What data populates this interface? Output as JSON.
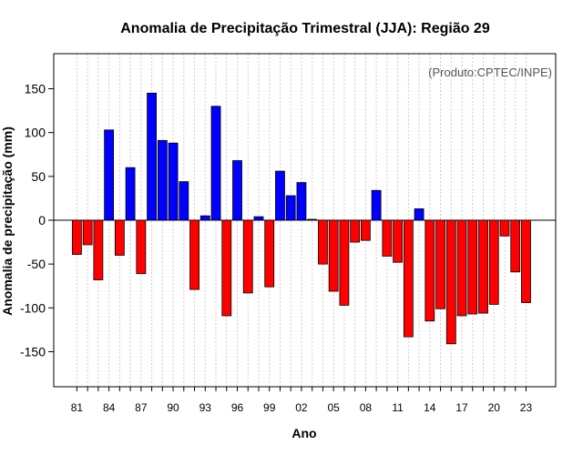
{
  "chart_data": {
    "type": "bar",
    "title": "Anomalia de Precipitação Trimestral (JJA): Região 29",
    "xlabel": "Ano",
    "ylabel": "Anomalia de precipitação (mm)",
    "credit": "(Produto:CPTEC/INPE)",
    "ylim": [
      -190,
      190
    ],
    "yticks": [
      -150,
      -100,
      -50,
      0,
      50,
      100,
      150
    ],
    "grid": "vertical dotted",
    "positive_color": "#0000ff",
    "negative_color": "#ff0000",
    "categories": [
      "81",
      "82",
      "83",
      "84",
      "85",
      "86",
      "87",
      "88",
      "89",
      "90",
      "91",
      "92",
      "93",
      "94",
      "95",
      "96",
      "97",
      "98",
      "99",
      "00",
      "01",
      "02",
      "03",
      "04",
      "05",
      "06",
      "07",
      "08",
      "09",
      "10",
      "11",
      "12",
      "13",
      "14",
      "15",
      "16",
      "17",
      "18",
      "19",
      "20",
      "21",
      "22",
      "23"
    ],
    "xtick_labels": [
      "81",
      "84",
      "87",
      "90",
      "93",
      "96",
      "99",
      "02",
      "05",
      "08",
      "11",
      "14",
      "17",
      "20",
      "23"
    ],
    "values": [
      -39,
      -28,
      -68,
      103,
      -40,
      60,
      -61,
      145,
      91,
      88,
      44,
      -79,
      5,
      130,
      -109,
      68,
      -83,
      4,
      -76,
      56,
      28,
      43,
      1,
      -50,
      -81,
      -97,
      -25,
      -23,
      34,
      -41,
      -48,
      -133,
      13,
      -115,
      -101,
      -141,
      -109,
      -107,
      -106,
      -96,
      -18,
      -59,
      -94
    ]
  }
}
